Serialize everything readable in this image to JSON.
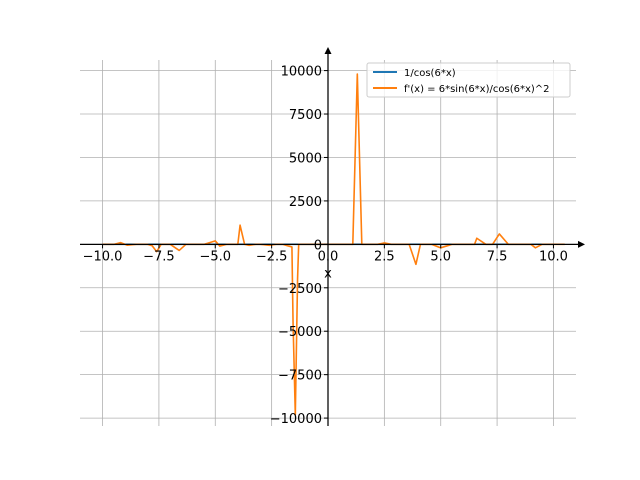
{
  "chart_data": {
    "type": "line",
    "title": "",
    "xlabel": "x",
    "ylabel": "",
    "xlim": [
      -11.0,
      11.0
    ],
    "ylim": [
      -10800,
      11300
    ],
    "grid": true,
    "legend_position": "top-right",
    "x_ticks": [
      -10.0,
      -7.5,
      -5.0,
      -2.5,
      0.0,
      2.5,
      5.0,
      7.5,
      10.0
    ],
    "x_tick_labels": [
      "−10.0",
      "−7.5",
      "−5.0",
      "−2.5",
      "0.0",
      "2.5",
      "5.0",
      "7.5",
      "10.0"
    ],
    "y_ticks": [
      -10000,
      -7500,
      -5000,
      -2500,
      0,
      2500,
      5000,
      7500,
      10000
    ],
    "y_tick_labels": [
      "−10000",
      "−7500",
      "−5000",
      "−2500",
      "0",
      "2500",
      "5000",
      "7500",
      "10000"
    ],
    "series": [
      {
        "name": "1/cos(6*x)",
        "color": "#1f77b4",
        "x": [
          -10,
          -7.5,
          -5,
          -2.5,
          0,
          2.5,
          5,
          7.5,
          10
        ],
        "y": [
          0,
          0,
          0,
          0,
          0,
          0,
          0,
          0,
          0
        ]
      },
      {
        "name": "f'(x) = 6*sin(6*x)/cos(6*x)^2",
        "color": "#ff7f0e",
        "x": [
          -10.0,
          -9.5,
          -9.2,
          -8.9,
          -8.5,
          -8.0,
          -7.8,
          -7.6,
          -7.4,
          -7.0,
          -6.6,
          -6.3,
          -6.0,
          -5.5,
          -5.0,
          -4.8,
          -4.5,
          -4.2,
          -4.0,
          -3.9,
          -3.7,
          -3.5,
          -3.2,
          -3.0,
          -2.6,
          -2.3,
          -2.0,
          -1.8,
          -1.6,
          -1.55,
          -1.45,
          -1.35,
          -1.3,
          -1.2,
          -1.0,
          -0.6,
          0.0,
          0.6,
          1.0,
          1.1,
          1.3,
          1.5,
          1.8,
          2.2,
          2.5,
          2.8,
          3.2,
          3.6,
          3.9,
          4.1,
          4.3,
          4.6,
          5.0,
          5.5,
          6.0,
          6.5,
          6.6,
          7.0,
          7.3,
          7.6,
          8.0,
          8.5,
          9.0,
          9.2,
          9.5,
          10.0,
          10.5
        ],
        "y": [
          0,
          0,
          100,
          -50,
          0,
          0,
          -80,
          -420,
          0,
          0,
          -350,
          0,
          0,
          0,
          200,
          -100,
          0,
          0,
          0,
          1100,
          0,
          -60,
          0,
          0,
          -60,
          0,
          0,
          -80,
          -150,
          -4500,
          -9800,
          -2000,
          0,
          0,
          0,
          0,
          0,
          0,
          0,
          0,
          9800,
          0,
          0,
          0,
          80,
          0,
          0,
          0,
          -1150,
          0,
          0,
          0,
          -200,
          0,
          0,
          0,
          350,
          0,
          0,
          600,
          0,
          0,
          0,
          -200,
          0,
          0,
          0
        ]
      }
    ]
  }
}
